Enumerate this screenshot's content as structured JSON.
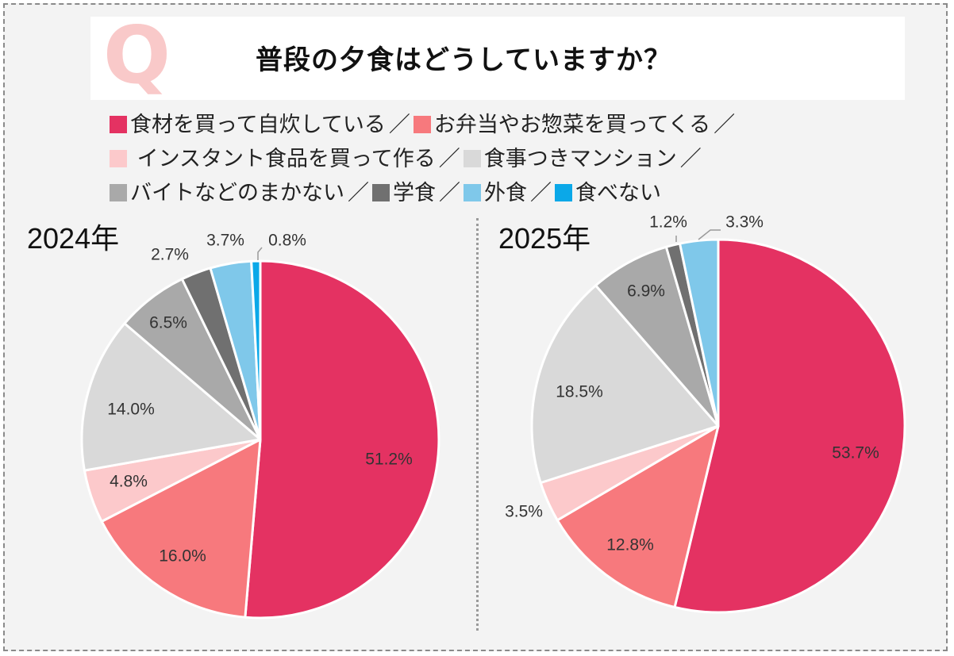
{
  "question": {
    "mark": "Q",
    "text": "普段の夕食はどうしていますか？"
  },
  "legend": [
    {
      "label": "食材を買って自炊している",
      "color": "#e43262"
    },
    {
      "label": "お弁当やお惣菜を買ってくる",
      "color": "#f7797d"
    },
    {
      "label": " インスタント食品を買って作る",
      "color": "#fcc9cb"
    },
    {
      "label": "食事つきマンション",
      "color": "#d9d9d9"
    },
    {
      "label": "バイトなどのまかない",
      "color": "#a9a9a9"
    },
    {
      "label": "学食",
      "color": "#707070"
    },
    {
      "label": "外食",
      "color": "#7fc8ea"
    },
    {
      "label": "食べない",
      "color": "#0ba8e8"
    }
  ],
  "legend_separator": "／",
  "chart_data": [
    {
      "type": "pie",
      "title": "2024年",
      "categories": [
        "食材を買って自炊している",
        "お弁当やお惣菜を買ってくる",
        "インスタント食品を買って作る",
        "食事つきマンション",
        "バイトなどのまかない",
        "学食",
        "外食",
        "食べない"
      ],
      "values": [
        51.2,
        16.0,
        4.8,
        14.0,
        6.5,
        2.7,
        3.7,
        0.8
      ],
      "labels": [
        "51.2%",
        "16.0%",
        "4.8%",
        "14.0%",
        "6.5%",
        "2.7%",
        "3.7%",
        "0.8%"
      ]
    },
    {
      "type": "pie",
      "title": "2025年",
      "categories": [
        "食材を買って自炊している",
        "お弁当やお惣菜を買ってくる",
        "インスタント食品を買って作る",
        "食事つきマンション",
        "バイトなどのまかない",
        "学食",
        "外食",
        "食べない"
      ],
      "values": [
        53.7,
        12.8,
        3.5,
        18.5,
        6.9,
        1.2,
        3.3,
        0.0
      ],
      "labels": [
        "53.7%",
        "12.8%",
        "3.5%",
        "18.5%",
        "6.9%",
        "1.2%",
        "3.3%",
        ""
      ]
    }
  ]
}
